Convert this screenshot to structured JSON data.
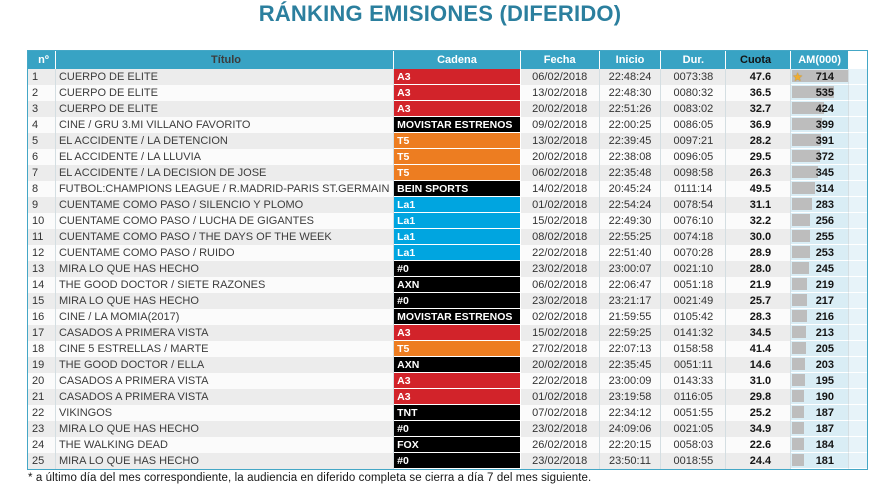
{
  "title": "RÁNKING EMISIONES (DIFERIDO)",
  "footnote": "* a último día del mes correspondiente, la audiencia en diferido completa se cierra a día 7 del mes siguiente.",
  "colors": {
    "title": "#2b7f9e",
    "header_bg": "#38a3c4",
    "am_cell_bg": "#d9edf5",
    "bar": "#bdbdbd",
    "star": "#f0ad2e",
    "channels": {
      "A3": "#d2232a",
      "T5": "#ed7d21",
      "La1": "#00a5e0",
      "MOVISTAR ESTRENOS": "#000000",
      "BEIN SPORTS": "#000000",
      "#0": "#000000",
      "AXN": "#000000",
      "TNT": "#000000",
      "FOX": "#000000"
    }
  },
  "table": {
    "columns": [
      "nº",
      "Título",
      "Cadena",
      "Fecha",
      "Inicio",
      "Dur.",
      "Cuota",
      "AM(000)"
    ],
    "rows": [
      {
        "n": "1",
        "title": "CUERPO DE ELITE",
        "channel": "A3",
        "fecha": "06/02/2018",
        "inicio": "22:48:24",
        "dur": "0073:38",
        "cuota": "47.6",
        "am": 714,
        "star": true
      },
      {
        "n": "2",
        "title": "CUERPO DE ELITE",
        "channel": "A3",
        "fecha": "13/02/2018",
        "inicio": "22:48:30",
        "dur": "0080:32",
        "cuota": "36.5",
        "am": 535,
        "star": false
      },
      {
        "n": "3",
        "title": "CUERPO DE ELITE",
        "channel": "A3",
        "fecha": "20/02/2018",
        "inicio": "22:51:26",
        "dur": "0083:02",
        "cuota": "32.7",
        "am": 424,
        "star": false
      },
      {
        "n": "4",
        "title": "CINE / GRU 3.MI VILLANO FAVORITO",
        "channel": "MOVISTAR ESTRENOS",
        "fecha": "09/02/2018",
        "inicio": "22:00:25",
        "dur": "0086:05",
        "cuota": "36.9",
        "am": 399,
        "star": false
      },
      {
        "n": "5",
        "title": "EL ACCIDENTE / LA DETENCION",
        "channel": "T5",
        "fecha": "13/02/2018",
        "inicio": "22:39:45",
        "dur": "0097:21",
        "cuota": "28.2",
        "am": 391,
        "star": false
      },
      {
        "n": "6",
        "title": "EL ACCIDENTE / LA LLUVIA",
        "channel": "T5",
        "fecha": "20/02/2018",
        "inicio": "22:38:08",
        "dur": "0096:05",
        "cuota": "29.5",
        "am": 372,
        "star": false
      },
      {
        "n": "7",
        "title": "EL ACCIDENTE / LA DECISION DE JOSE",
        "channel": "T5",
        "fecha": "06/02/2018",
        "inicio": "22:35:48",
        "dur": "0098:58",
        "cuota": "26.3",
        "am": 345,
        "star": false
      },
      {
        "n": "8",
        "title": "FUTBOL:CHAMPIONS LEAGUE / R.MADRID-PARIS ST.GERMAIN",
        "channel": "BEIN SPORTS",
        "fecha": "14/02/2018",
        "inicio": "20:45:24",
        "dur": "0111:14",
        "cuota": "49.5",
        "am": 314,
        "star": false
      },
      {
        "n": "9",
        "title": "CUENTAME COMO PASO / SILENCIO Y PLOMO",
        "channel": "La1",
        "fecha": "01/02/2018",
        "inicio": "22:54:24",
        "dur": "0078:54",
        "cuota": "31.1",
        "am": 283,
        "star": false
      },
      {
        "n": "10",
        "title": "CUENTAME COMO PASO / LUCHA DE GIGANTES",
        "channel": "La1",
        "fecha": "15/02/2018",
        "inicio": "22:49:30",
        "dur": "0076:10",
        "cuota": "32.2",
        "am": 256,
        "star": false
      },
      {
        "n": "11",
        "title": "CUENTAME COMO PASO / THE DAYS OF THE WEEK",
        "channel": "La1",
        "fecha": "08/02/2018",
        "inicio": "22:55:25",
        "dur": "0074:18",
        "cuota": "30.0",
        "am": 255,
        "star": false
      },
      {
        "n": "12",
        "title": "CUENTAME COMO PASO / RUIDO",
        "channel": "La1",
        "fecha": "22/02/2018",
        "inicio": "22:51:40",
        "dur": "0070:28",
        "cuota": "28.9",
        "am": 253,
        "star": false
      },
      {
        "n": "13",
        "title": "MIRA LO QUE HAS HECHO",
        "channel": "#0",
        "fecha": "23/02/2018",
        "inicio": "23:00:07",
        "dur": "0021:10",
        "cuota": "28.0",
        "am": 245,
        "star": false
      },
      {
        "n": "14",
        "title": "THE GOOD DOCTOR / SIETE RAZONES",
        "channel": "AXN",
        "fecha": "06/02/2018",
        "inicio": "22:06:47",
        "dur": "0051:18",
        "cuota": "21.9",
        "am": 219,
        "star": false
      },
      {
        "n": "15",
        "title": "MIRA LO QUE HAS HECHO",
        "channel": "#0",
        "fecha": "23/02/2018",
        "inicio": "23:21:17",
        "dur": "0021:49",
        "cuota": "25.7",
        "am": 217,
        "star": false
      },
      {
        "n": "16",
        "title": "CINE / LA MOMIA(2017)",
        "channel": "MOVISTAR ESTRENOS",
        "fecha": "02/02/2018",
        "inicio": "21:59:55",
        "dur": "0105:42",
        "cuota": "28.3",
        "am": 216,
        "star": false
      },
      {
        "n": "17",
        "title": "CASADOS A PRIMERA VISTA",
        "channel": "A3",
        "fecha": "15/02/2018",
        "inicio": "22:59:25",
        "dur": "0141:32",
        "cuota": "34.5",
        "am": 213,
        "star": false
      },
      {
        "n": "18",
        "title": "CINE 5 ESTRELLAS / MARTE",
        "channel": "T5",
        "fecha": "27/02/2018",
        "inicio": "22:07:13",
        "dur": "0158:58",
        "cuota": "41.4",
        "am": 205,
        "star": false
      },
      {
        "n": "19",
        "title": "THE GOOD DOCTOR / ELLA",
        "channel": "AXN",
        "fecha": "20/02/2018",
        "inicio": "22:35:45",
        "dur": "0051:11",
        "cuota": "14.6",
        "am": 203,
        "star": false
      },
      {
        "n": "20",
        "title": "CASADOS A PRIMERA VISTA",
        "channel": "A3",
        "fecha": "22/02/2018",
        "inicio": "23:00:09",
        "dur": "0143:33",
        "cuota": "31.0",
        "am": 195,
        "star": false
      },
      {
        "n": "21",
        "title": "CASADOS A PRIMERA VISTA",
        "channel": "A3",
        "fecha": "01/02/2018",
        "inicio": "23:19:58",
        "dur": "0116:05",
        "cuota": "29.8",
        "am": 190,
        "star": false
      },
      {
        "n": "22",
        "title": "VIKINGOS",
        "channel": "TNT",
        "fecha": "07/02/2018",
        "inicio": "22:34:12",
        "dur": "0051:55",
        "cuota": "25.2",
        "am": 187,
        "star": false
      },
      {
        "n": "23",
        "title": "MIRA LO QUE HAS HECHO",
        "channel": "#0",
        "fecha": "23/02/2018",
        "inicio": "24:09:06",
        "dur": "0021:05",
        "cuota": "34.9",
        "am": 187,
        "star": false
      },
      {
        "n": "24",
        "title": "THE WALKING DEAD",
        "channel": "FOX",
        "fecha": "26/02/2018",
        "inicio": "22:20:15",
        "dur": "0058:03",
        "cuota": "22.6",
        "am": 184,
        "star": false
      },
      {
        "n": "25",
        "title": "MIRA LO QUE HAS HECHO",
        "channel": "#0",
        "fecha": "23/02/2018",
        "inicio": "23:50:11",
        "dur": "0018:55",
        "cuota": "24.4",
        "am": 181,
        "star": false
      }
    ]
  }
}
